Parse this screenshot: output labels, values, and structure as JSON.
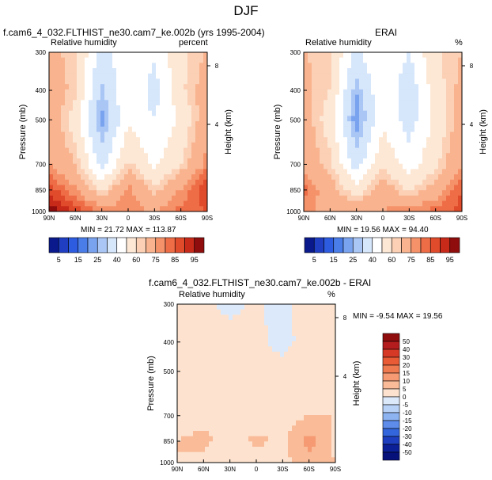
{
  "figure": {
    "title": "DJF",
    "y_axis_label": "Pressure (mb)",
    "right_axis_label": "Height (km)",
    "x_ticks": [
      "90N",
      "60N",
      "30N",
      "0",
      "30S",
      "60S",
      "90S"
    ],
    "p_ticks": [
      "300",
      "400",
      "500",
      "700",
      "850",
      "1000"
    ],
    "h_ticks": [
      "8",
      "4"
    ]
  },
  "panels": [
    {
      "id": "model",
      "title": "f.cam6_4_032.FLTHIST_ne30.cam7_ke.002b (yrs 1995-2004)",
      "left_label": "Relative humidity",
      "right_label": "percent",
      "min_max": "MIN = 21.72   MAX = 113.87"
    },
    {
      "id": "obs",
      "title": "ERAI",
      "left_label": "Relative humidity",
      "right_label": "%",
      "min_max": "MIN = 19.56   MAX = 94.40"
    },
    {
      "id": "diff",
      "title": "f.cam6_4_032.FLTHIST_ne30.cam7_ke.002b - ERAI",
      "left_label": "Relative humidity",
      "right_label": "%",
      "min_max": "MIN =  -9.54   MAX =  19.56"
    }
  ],
  "chart_data": [
    {
      "type": "heatmap",
      "title": "f.cam6_4_032.FLTHIST_ne30.cam7_ke.002b (yrs 1995-2004)",
      "xlabel": "",
      "ylabel": "Pressure (mb)",
      "x": [
        "90N",
        "60N",
        "30N",
        "0",
        "30S",
        "60S",
        "90S"
      ],
      "y": [
        300,
        400,
        500,
        700,
        850,
        1000
      ],
      "values": [
        [
          68,
          62,
          35,
          48,
          42,
          58,
          66
        ],
        [
          72,
          62,
          28,
          50,
          35,
          58,
          70
        ],
        [
          72,
          55,
          22,
          48,
          40,
          52,
          72
        ],
        [
          75,
          65,
          35,
          62,
          48,
          60,
          78
        ],
        [
          88,
          76,
          58,
          78,
          62,
          76,
          90
        ],
        [
          100,
          88,
          80,
          78,
          75,
          82,
          null
        ]
      ],
      "colorbar": [
        "5",
        "15",
        "25",
        "40",
        "60",
        "75",
        "85",
        "95"
      ]
    },
    {
      "type": "heatmap",
      "title": "ERAI",
      "xlabel": "",
      "ylabel": "Pressure (mb)",
      "x": [
        "90N",
        "60N",
        "30N",
        "0",
        "30S",
        "60S",
        "90S"
      ],
      "y": [
        300,
        400,
        500,
        700,
        850,
        1000
      ],
      "values": [
        [
          66,
          60,
          38,
          50,
          40,
          58,
          65
        ],
        [
          68,
          60,
          25,
          50,
          32,
          56,
          68
        ],
        [
          70,
          55,
          20,
          48,
          35,
          52,
          70
        ],
        [
          72,
          62,
          35,
          58,
          45,
          58,
          75
        ],
        [
          82,
          70,
          55,
          72,
          58,
          70,
          85
        ],
        [
          78,
          70,
          72,
          75,
          80,
          82,
          88
        ]
      ],
      "colorbar": [
        "5",
        "15",
        "25",
        "40",
        "60",
        "75",
        "85",
        "95"
      ]
    },
    {
      "type": "heatmap",
      "title": "f.cam6_4_032.FLTHIST_ne30.cam7_ke.002b - ERAI",
      "xlabel": "",
      "ylabel": "Pressure (mb)",
      "x": [
        "90N",
        "60N",
        "30N",
        "0",
        "30S",
        "60S",
        "90S"
      ],
      "y": [
        300,
        400,
        500,
        700,
        850,
        1000
      ],
      "values": [
        [
          3,
          2,
          -2,
          1,
          -2,
          3,
          2
        ],
        [
          4,
          3,
          3,
          2,
          -3,
          4,
          4
        ],
        [
          4,
          2,
          2,
          2,
          4,
          3,
          3
        ],
        [
          3,
          4,
          2,
          3,
          3,
          5,
          5
        ],
        [
          5,
          6,
          3,
          6,
          4,
          12,
          4
        ],
        [
          5,
          4,
          2,
          3,
          3,
          8,
          null
        ]
      ],
      "colorbar": [
        "50",
        "40",
        "30",
        "20",
        "15",
        "10",
        "5",
        "0",
        "-5",
        "-10",
        "-15",
        "-20",
        "-30",
        "-40",
        "-50"
      ]
    }
  ],
  "colors": {
    "abs_scale": [
      "#0a1a8c",
      "#1f3ec2",
      "#2e5ce0",
      "#4a7de8",
      "#7aa3ef",
      "#a9c6f5",
      "#d6e6fb",
      "#ffffff",
      "#fde8d6",
      "#fbd0b5",
      "#f9b38e",
      "#f5926a",
      "#ee6d46",
      "#e04b2c",
      "#c82a1a",
      "#8f0d0d"
    ],
    "diff_scale": [
      "#8f0d0d",
      "#b31d1d",
      "#d63a27",
      "#e85b35",
      "#f07a50",
      "#f59a72",
      "#f9bb98",
      "#fde3cf",
      "#dce9fb",
      "#b8d1f7",
      "#8db3f1",
      "#5d8ceb",
      "#3366dc",
      "#1d3fbf",
      "#0b1f96",
      "#06117a"
    ]
  }
}
